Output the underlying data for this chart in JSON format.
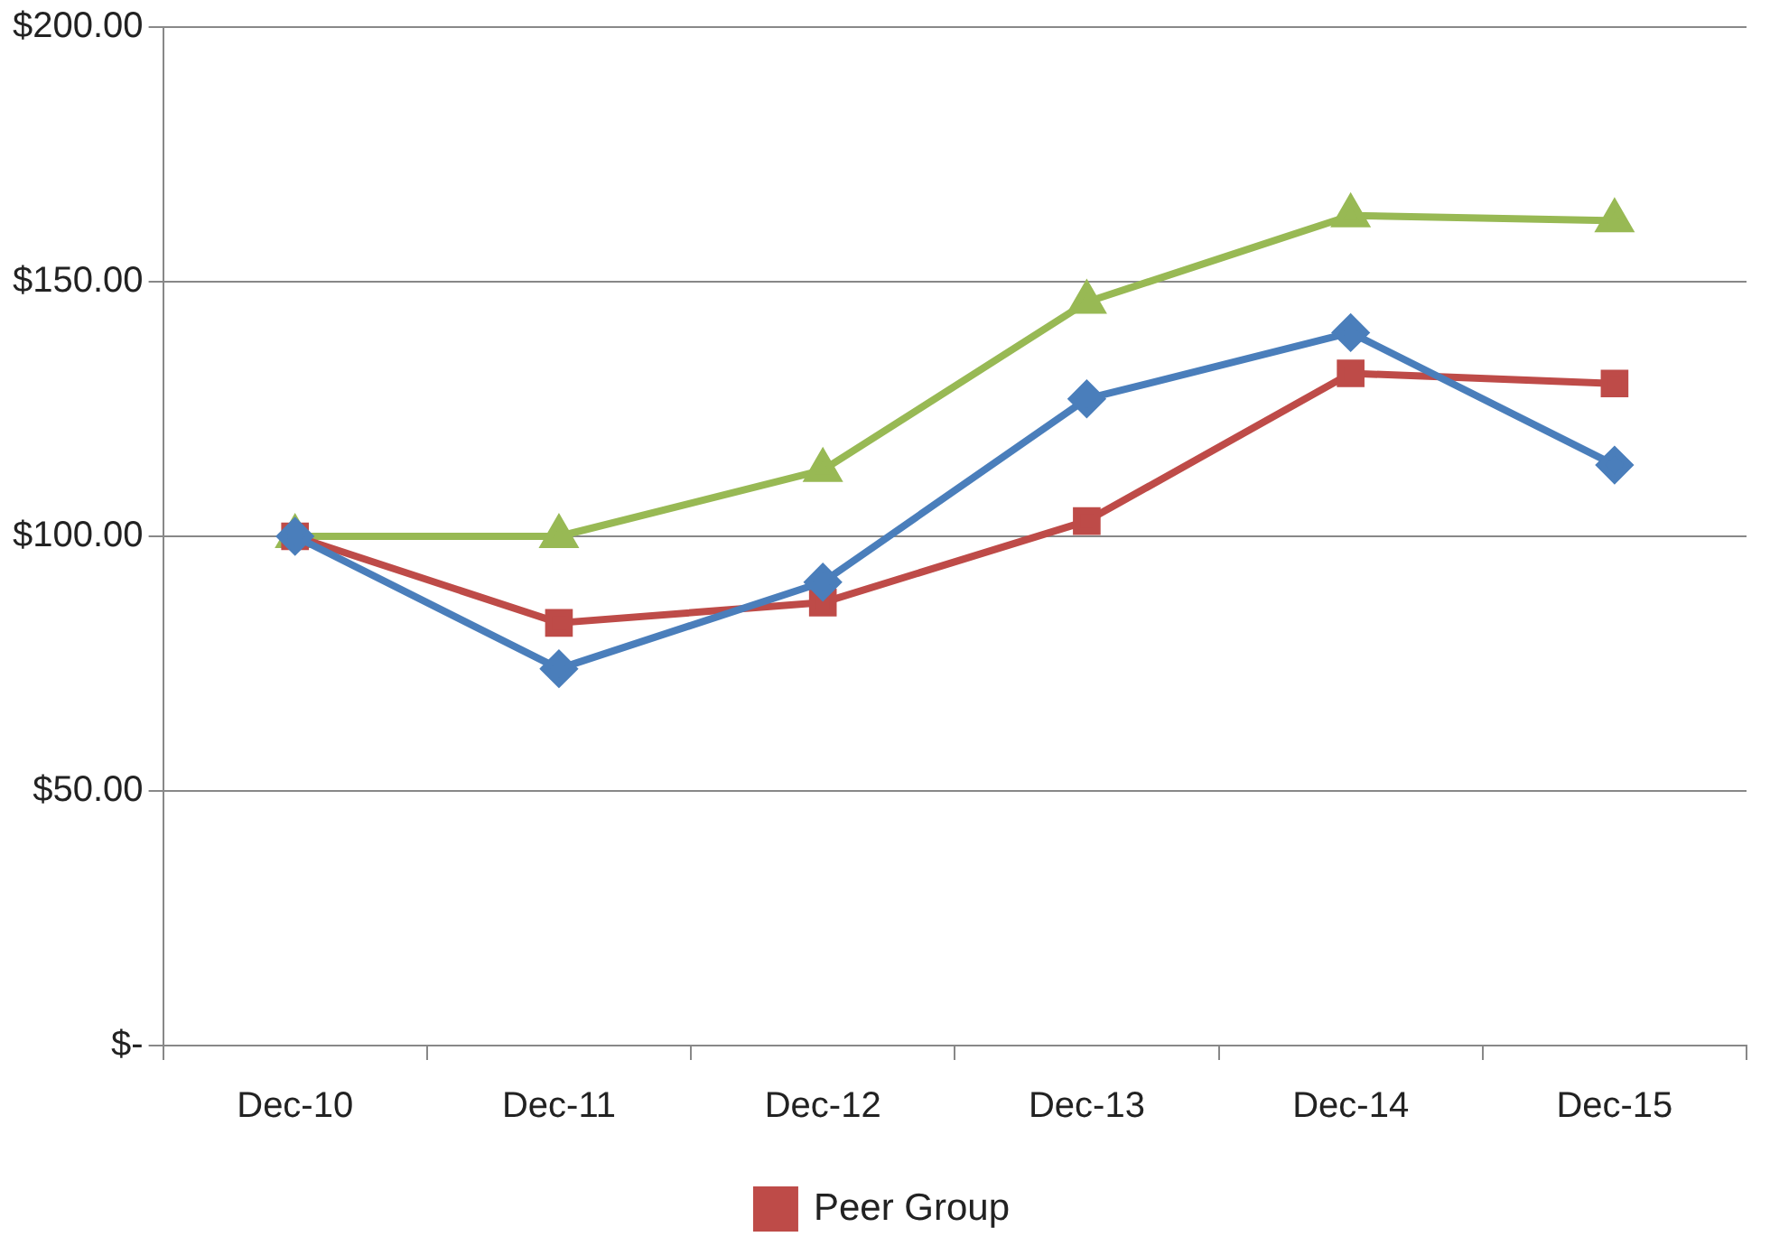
{
  "chart_data": {
    "type": "line",
    "categories": [
      "Dec-10",
      "Dec-11",
      "Dec-12",
      "Dec-13",
      "Dec-14",
      "Dec-15"
    ],
    "series": [
      {
        "color": "#4a7ebb",
        "marker": "diamond",
        "values": [
          100,
          74,
          91,
          127,
          140,
          114
        ]
      },
      {
        "name": "Peer Group",
        "color": "#be4b48",
        "marker": "square",
        "values": [
          100,
          83,
          87,
          103,
          132,
          130
        ]
      },
      {
        "color": "#98b954",
        "marker": "triangle",
        "values": [
          100,
          100,
          113,
          146,
          163,
          162
        ]
      }
    ],
    "ylim": [
      0,
      200
    ],
    "yticks": [
      {
        "value": 0,
        "label": "$-"
      },
      {
        "value": 50,
        "label": "$50.00"
      },
      {
        "value": 100,
        "label": "$100.00"
      },
      {
        "value": 150,
        "label": "$150.00"
      },
      {
        "value": 200,
        "label": "$200.00"
      }
    ],
    "grid": "y",
    "legend": "bottom",
    "line_style": "solid"
  }
}
